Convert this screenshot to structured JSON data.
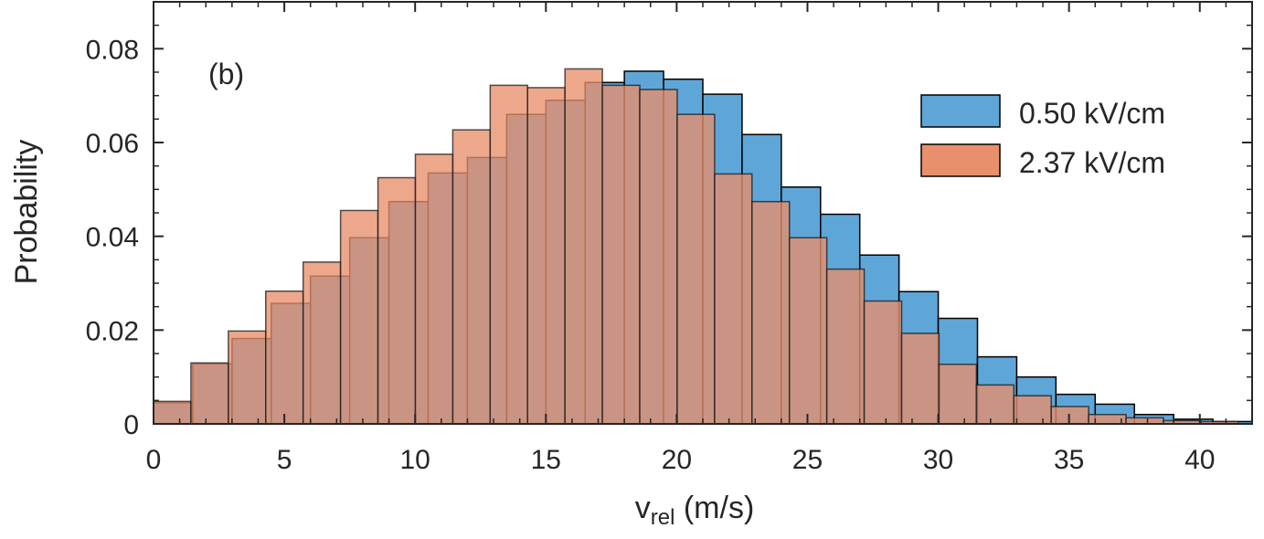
{
  "chart_data": {
    "type": "bar",
    "subtype": "overlaid-histogram",
    "panel_label": "(b)",
    "xlabel_main": "v",
    "xlabel_sub": "rel",
    "xlabel_unit": " (m/s)",
    "ylabel": "Probability",
    "xlim": [
      0,
      42
    ],
    "ylim": [
      0,
      0.09
    ],
    "x_ticks": [
      0,
      5,
      10,
      15,
      20,
      25,
      30,
      35,
      40
    ],
    "x_tick_labels": [
      "0",
      "5",
      "10",
      "15",
      "20",
      "25",
      "30",
      "35",
      "40"
    ],
    "y_ticks": [
      0,
      0.02,
      0.04,
      0.06,
      0.08
    ],
    "y_tick_labels": [
      "0",
      "0.02",
      "0.04",
      "0.06",
      "0.08"
    ],
    "legend_position": "top-right",
    "series": [
      {
        "name": "0.50 kV/cm",
        "color": "#5fa6d8",
        "bin_edges": [
          0,
          1.5,
          3.0,
          4.5,
          6.0,
          7.5,
          9.0,
          10.5,
          12.0,
          13.5,
          15.0,
          16.5,
          18.0,
          19.5,
          21.0,
          22.5,
          24.0,
          25.5,
          27.0,
          28.5,
          30.0,
          31.5,
          33.0,
          34.5,
          36.0,
          37.5,
          39.0,
          40.5,
          42.0
        ],
        "values": [
          0.0045,
          0.0128,
          0.0182,
          0.0257,
          0.0315,
          0.0397,
          0.0474,
          0.0535,
          0.0568,
          0.066,
          0.069,
          0.0728,
          0.0752,
          0.0735,
          0.0703,
          0.0617,
          0.0505,
          0.0447,
          0.036,
          0.0282,
          0.0225,
          0.0143,
          0.01,
          0.0063,
          0.0042,
          0.002,
          0.001,
          0.0005
        ]
      },
      {
        "name": "2.37 kV/cm",
        "color": "#e8906b",
        "bin_edges": [
          0,
          1.43,
          2.86,
          4.29,
          5.72,
          7.15,
          8.58,
          10.01,
          11.44,
          12.87,
          14.3,
          15.73,
          17.16,
          18.59,
          20.02,
          21.45,
          22.88,
          24.31,
          25.74,
          27.17,
          28.6,
          30.03,
          31.46,
          32.89,
          34.32,
          35.75,
          37.18,
          38.61,
          40.04,
          41.47
        ],
        "values": [
          0.0048,
          0.013,
          0.0198,
          0.0283,
          0.0345,
          0.0455,
          0.0525,
          0.0575,
          0.0627,
          0.0722,
          0.0717,
          0.0757,
          0.0722,
          0.0713,
          0.066,
          0.0533,
          0.0474,
          0.0397,
          0.033,
          0.0262,
          0.0193,
          0.0127,
          0.0083,
          0.006,
          0.0037,
          0.002,
          0.0013,
          0.0007,
          0.0005
        ]
      }
    ]
  }
}
